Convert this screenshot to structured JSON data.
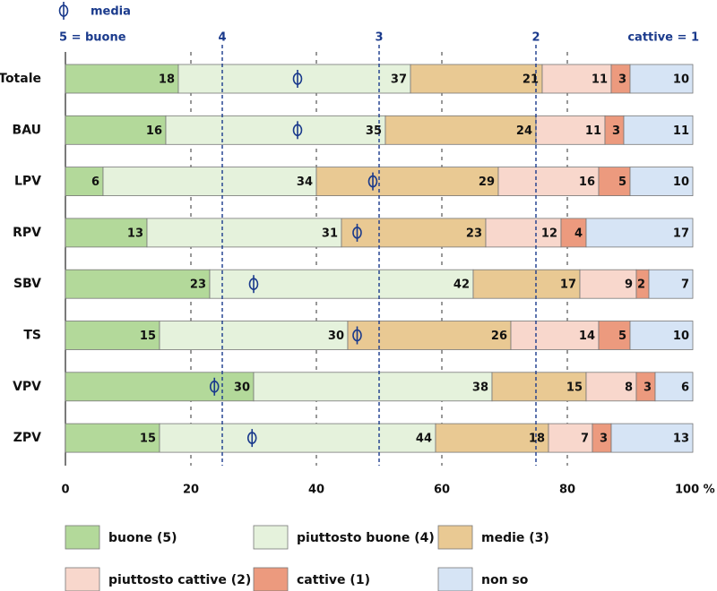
{
  "chart_data": {
    "type": "bar",
    "orientation": "horizontal",
    "stacked": true,
    "categories": [
      "Totale",
      "BAU",
      "LPV",
      "RPV",
      "SBV",
      "TS",
      "VPV",
      "ZPV"
    ],
    "series": [
      {
        "name": "buone (5)",
        "color": "#b3d99a",
        "values": [
          18,
          16,
          6,
          13,
          23,
          15,
          30,
          15
        ]
      },
      {
        "name": "piuttosto buone (4)",
        "color": "#e5f2dc",
        "values": [
          37,
          35,
          34,
          31,
          42,
          30,
          38,
          44
        ]
      },
      {
        "name": "medie (3)",
        "color": "#e9c993",
        "values": [
          21,
          24,
          29,
          23,
          17,
          26,
          15,
          18
        ]
      },
      {
        "name": "piuttosto cattive (2)",
        "color": "#f8d7cc",
        "values": [
          11,
          11,
          16,
          12,
          9,
          14,
          8,
          7
        ]
      },
      {
        "name": "cattive (1)",
        "color": "#ec9a7e",
        "values": [
          3,
          3,
          5,
          4,
          2,
          5,
          3,
          3
        ]
      },
      {
        "name": "non so",
        "color": "#d6e4f5",
        "values": [
          10,
          11,
          10,
          17,
          7,
          10,
          6,
          13
        ]
      }
    ],
    "means": [
      3.52,
      3.52,
      3.04,
      3.14,
      3.8,
      3.14,
      4.05,
      3.81
    ],
    "mean_marker_label": "media",
    "xlim": [
      0,
      100
    ],
    "xticks": [
      "0",
      "20",
      "40",
      "60",
      "80",
      "100 %"
    ],
    "dotted_grid_x": [
      20,
      40,
      60,
      80
    ],
    "scale_lines": [
      {
        "label": "4",
        "x": 25
      },
      {
        "label": "3",
        "x": 50
      },
      {
        "label": "2",
        "x": 75
      }
    ],
    "scale_left_label": "5 = buone",
    "scale_right_label": "cattive = 1",
    "legend_position": "bottom"
  }
}
